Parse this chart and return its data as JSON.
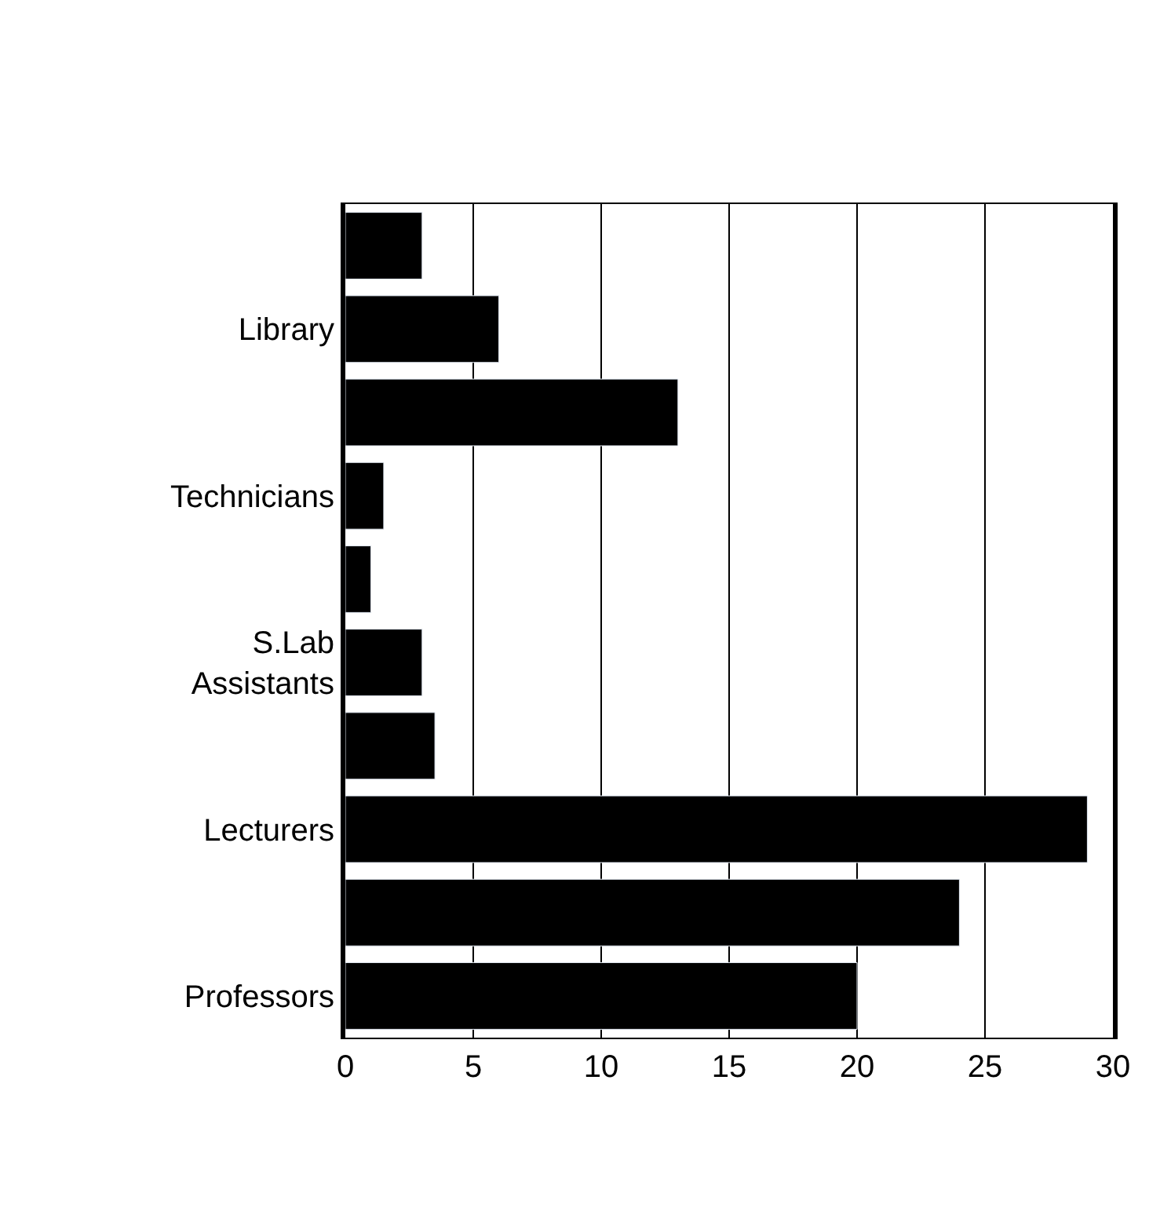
{
  "chart_data": {
    "type": "bar",
    "orientation": "horizontal",
    "categories": [
      null,
      "Library",
      null,
      "Technicians",
      null,
      "S.Lab\nAssistants",
      null,
      "Lecturers",
      null,
      "Professors"
    ],
    "values": [
      3,
      6,
      13,
      1.5,
      1,
      3,
      3.5,
      29,
      24,
      20
    ],
    "color": "#000000",
    "xlim": [
      0,
      30
    ],
    "xticks": [
      0,
      5,
      10,
      15,
      20,
      25,
      30
    ],
    "grid": "x"
  }
}
